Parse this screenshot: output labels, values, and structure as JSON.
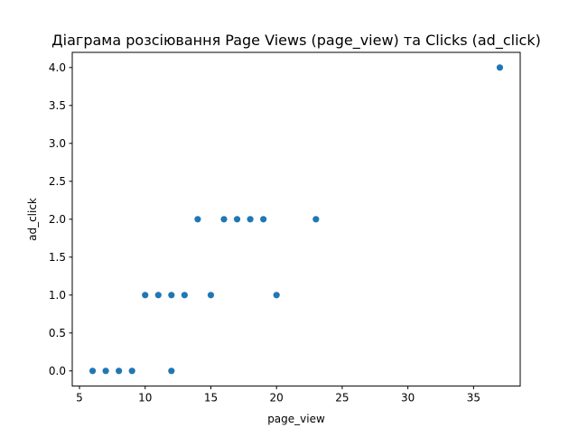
{
  "chart_data": {
    "type": "scatter",
    "title": "Діаграма розсіювання Page Views (page_view) та Clicks (ad_click)",
    "xlabel": "page_view",
    "ylabel": "ad_click",
    "xlim": [
      4.45,
      38.55
    ],
    "ylim": [
      -0.2,
      4.2
    ],
    "xticks": [
      5,
      10,
      15,
      20,
      25,
      30,
      35
    ],
    "yticks": [
      0.0,
      0.5,
      1.0,
      1.5,
      2.0,
      2.5,
      3.0,
      3.5,
      4.0
    ],
    "xtick_labels": [
      "5",
      "10",
      "15",
      "20",
      "25",
      "30",
      "35"
    ],
    "ytick_labels": [
      "0.0",
      "0.5",
      "1.0",
      "1.5",
      "2.0",
      "2.5",
      "3.0",
      "3.5",
      "4.0"
    ],
    "grid": false,
    "legend": "none",
    "marker_color": "#1f77b4",
    "points": [
      {
        "x": 6,
        "y": 0
      },
      {
        "x": 7,
        "y": 0
      },
      {
        "x": 8,
        "y": 0
      },
      {
        "x": 9,
        "y": 0
      },
      {
        "x": 12,
        "y": 0
      },
      {
        "x": 10,
        "y": 1
      },
      {
        "x": 11,
        "y": 1
      },
      {
        "x": 12,
        "y": 1
      },
      {
        "x": 13,
        "y": 1
      },
      {
        "x": 15,
        "y": 1
      },
      {
        "x": 20,
        "y": 1
      },
      {
        "x": 14,
        "y": 2
      },
      {
        "x": 16,
        "y": 2
      },
      {
        "x": 17,
        "y": 2
      },
      {
        "x": 18,
        "y": 2
      },
      {
        "x": 19,
        "y": 2
      },
      {
        "x": 23,
        "y": 2
      },
      {
        "x": 37,
        "y": 4
      }
    ]
  }
}
